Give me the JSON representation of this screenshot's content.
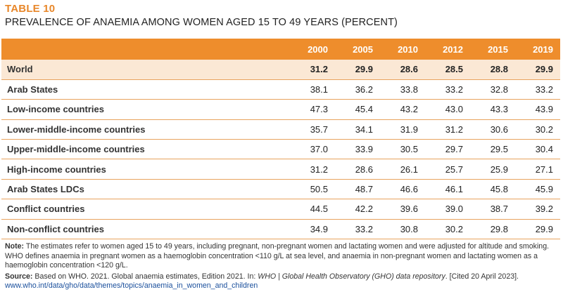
{
  "table_label": "TABLE 10",
  "table_title": "PREVALENCE OF ANAEMIA AMONG WOMEN AGED 15 TO 49 YEARS (PERCENT)",
  "columns": [
    "",
    "2000",
    "2005",
    "2010",
    "2012",
    "2015",
    "2019"
  ],
  "rows": [
    {
      "name": "World",
      "values": [
        "31.2",
        "29.9",
        "28.6",
        "28.5",
        "28.8",
        "29.9"
      ]
    },
    {
      "name": "Arab States",
      "values": [
        "38.1",
        "36.2",
        "33.8",
        "33.2",
        "32.8",
        "33.2"
      ]
    },
    {
      "name": "Low-income countries",
      "values": [
        "47.3",
        "45.4",
        "43.2",
        "43.0",
        "43.3",
        "43.9"
      ]
    },
    {
      "name": "Lower-middle-income countries",
      "values": [
        "35.7",
        "34.1",
        "31.9",
        "31.2",
        "30.6",
        "30.2"
      ]
    },
    {
      "name": "Upper-middle-income countries",
      "values": [
        "37.0",
        "33.9",
        "30.5",
        "29.7",
        "29.5",
        "30.4"
      ]
    },
    {
      "name": "High-income countries",
      "values": [
        "31.2",
        "28.6",
        "26.1",
        "25.7",
        "25.9",
        "27.1"
      ]
    },
    {
      "name": "Arab States LDCs",
      "values": [
        "50.5",
        "48.7",
        "46.6",
        "46.1",
        "45.8",
        "45.9"
      ]
    },
    {
      "name": "Conflict countries",
      "values": [
        "44.5",
        "42.2",
        "39.6",
        "39.0",
        "38.7",
        "39.2"
      ]
    },
    {
      "name": "Non-conflict countries",
      "values": [
        "34.9",
        "33.2",
        "30.8",
        "30.2",
        "29.8",
        "29.9"
      ]
    }
  ],
  "note": {
    "label": "Note:",
    "text": "The estimates refer to women aged 15 to 49 years, including pregnant, non-pregnant women and lactating women and were adjusted for altitude and smoking. WHO defines anaemia in pregnant women as a haemoglobin concentration <110 g/L at sea level, and anaemia in non-pregnant women and lactating women as a haemoglobin concentration <120 g/L."
  },
  "source": {
    "label": "Source:",
    "text_before": "Based on WHO. 2021. Global anaemia estimates, Edition 2021. In: ",
    "italic": "WHO | Global Health Observatory (GHO) data repository",
    "text_after": ". [Cited 20 April 2023].",
    "url": "www.who.int/data/gho/data/themes/topics/anaemia_in_women_and_children"
  }
}
